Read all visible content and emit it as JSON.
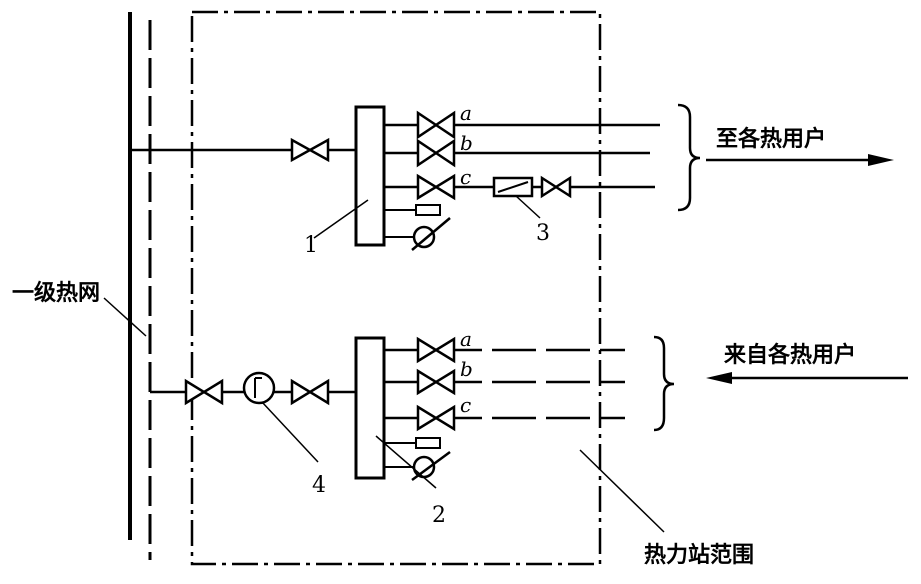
{
  "labels": {
    "primary_network": "一级热网",
    "supply_to_users": "至各热用户",
    "return_from_users": "来自各热用户",
    "station_boundary": "热力站范围"
  },
  "branch_letters": {
    "a": "a",
    "b": "b",
    "c": "c"
  },
  "component_numbers": {
    "supply_header": "1",
    "return_header": "2",
    "meter": "3",
    "pump_or_filter": "4"
  }
}
